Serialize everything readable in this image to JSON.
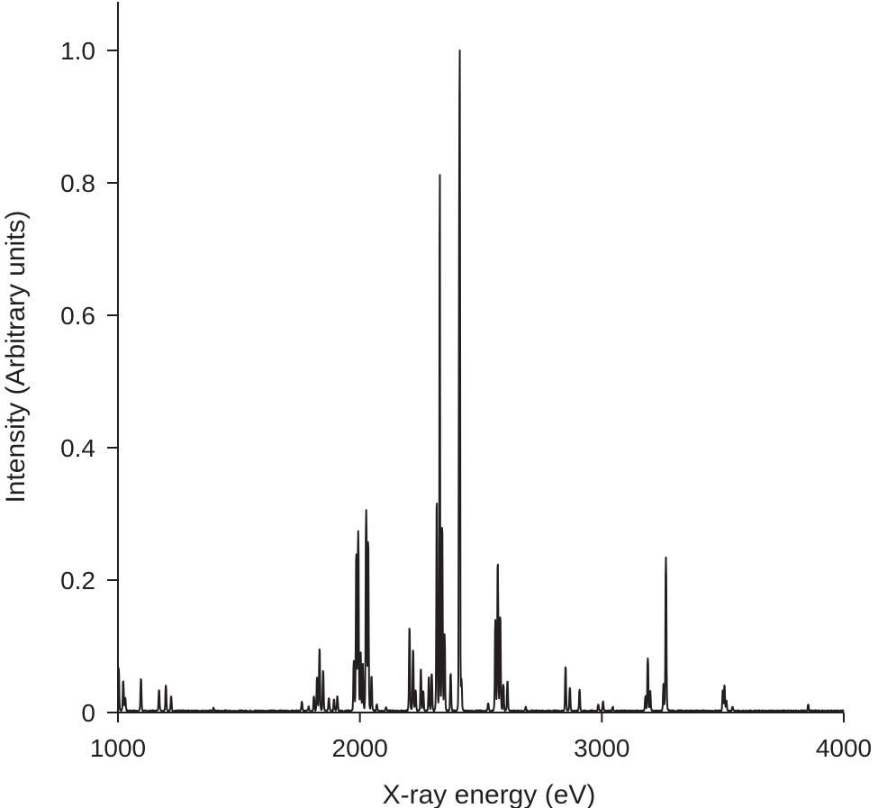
{
  "chart_data": {
    "type": "line",
    "title": "",
    "xlabel": "X-ray energy (eV)",
    "ylabel": "Intensity (Arbitrary units)",
    "xlim": [
      1000,
      4000
    ],
    "ylim": [
      0,
      1.0
    ],
    "x_ticks": [
      1000,
      2000,
      3000,
      4000
    ],
    "x_tick_labels": [
      "1000",
      "2000",
      "3000",
      "4000"
    ],
    "y_ticks": [
      0,
      0.2,
      0.4,
      0.6,
      0.8,
      1.0
    ],
    "y_tick_labels": [
      "0",
      "0.2",
      "0.4",
      "0.6",
      "0.8",
      "1.0"
    ],
    "grid": false,
    "legend": "none",
    "line_color": "#231f20",
    "series": [
      {
        "peaks": [
          {
            "x": 1003,
            "y": 0.065
          },
          {
            "x": 1022,
            "y": 0.045
          },
          {
            "x": 1030,
            "y": 0.02
          },
          {
            "x": 1095,
            "y": 0.048
          },
          {
            "x": 1170,
            "y": 0.032
          },
          {
            "x": 1198,
            "y": 0.038
          },
          {
            "x": 1220,
            "y": 0.022
          },
          {
            "x": 1395,
            "y": 0.004
          },
          {
            "x": 1760,
            "y": 0.014
          },
          {
            "x": 1788,
            "y": 0.006
          },
          {
            "x": 1810,
            "y": 0.022
          },
          {
            "x": 1823,
            "y": 0.05
          },
          {
            "x": 1833,
            "y": 0.093
          },
          {
            "x": 1848,
            "y": 0.06
          },
          {
            "x": 1872,
            "y": 0.02
          },
          {
            "x": 1893,
            "y": 0.018
          },
          {
            "x": 1907,
            "y": 0.022
          },
          {
            "x": 1975,
            "y": 0.074
          },
          {
            "x": 1985,
            "y": 0.233
          },
          {
            "x": 1993,
            "y": 0.27
          },
          {
            "x": 2003,
            "y": 0.087
          },
          {
            "x": 2012,
            "y": 0.07
          },
          {
            "x": 2026,
            "y": 0.301
          },
          {
            "x": 2034,
            "y": 0.252
          },
          {
            "x": 2048,
            "y": 0.052
          },
          {
            "x": 2070,
            "y": 0.01
          },
          {
            "x": 2108,
            "y": 0.006
          },
          {
            "x": 2205,
            "y": 0.124
          },
          {
            "x": 2220,
            "y": 0.092
          },
          {
            "x": 2230,
            "y": 0.03
          },
          {
            "x": 2252,
            "y": 0.062
          },
          {
            "x": 2262,
            "y": 0.03
          },
          {
            "x": 2285,
            "y": 0.05
          },
          {
            "x": 2297,
            "y": 0.056
          },
          {
            "x": 2318,
            "y": 0.314
          },
          {
            "x": 2330,
            "y": 0.816
          },
          {
            "x": 2340,
            "y": 0.276
          },
          {
            "x": 2350,
            "y": 0.114
          },
          {
            "x": 2375,
            "y": 0.055
          },
          {
            "x": 2410,
            "y": 0.64
          },
          {
            "x": 2413,
            "y": 1.0
          },
          {
            "x": 2420,
            "y": 0.044
          },
          {
            "x": 2530,
            "y": 0.012
          },
          {
            "x": 2560,
            "y": 0.136
          },
          {
            "x": 2570,
            "y": 0.221
          },
          {
            "x": 2580,
            "y": 0.14
          },
          {
            "x": 2593,
            "y": 0.04
          },
          {
            "x": 2610,
            "y": 0.044
          },
          {
            "x": 2685,
            "y": 0.006
          },
          {
            "x": 2850,
            "y": 0.066
          },
          {
            "x": 2868,
            "y": 0.035
          },
          {
            "x": 2908,
            "y": 0.032
          },
          {
            "x": 2985,
            "y": 0.01
          },
          {
            "x": 3005,
            "y": 0.014
          },
          {
            "x": 3045,
            "y": 0.006
          },
          {
            "x": 3180,
            "y": 0.022
          },
          {
            "x": 3190,
            "y": 0.08
          },
          {
            "x": 3200,
            "y": 0.03
          },
          {
            "x": 3255,
            "y": 0.04
          },
          {
            "x": 3265,
            "y": 0.232
          },
          {
            "x": 3500,
            "y": 0.03
          },
          {
            "x": 3507,
            "y": 0.038
          },
          {
            "x": 3515,
            "y": 0.015
          },
          {
            "x": 3540,
            "y": 0.006
          },
          {
            "x": 3853,
            "y": 0.01
          }
        ]
      }
    ]
  }
}
